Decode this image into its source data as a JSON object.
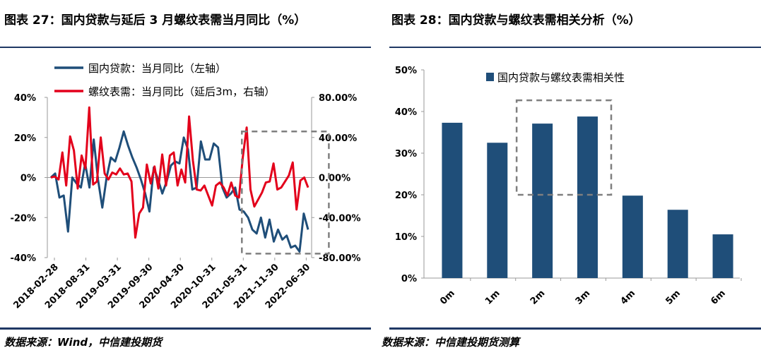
{
  "left": {
    "title": "图表 27：国内贷款与延后 3 月螺纹表需当月同比（%）",
    "source": "数据来源：Wind，中信建投期货",
    "chart_data": {
      "type": "line",
      "legend_position": "top-left",
      "grid": false,
      "x_ticks": [
        "2018-02-28",
        "2018-08-31",
        "2019-03-31",
        "2019-09-30",
        "2020-04-30",
        "2020-10-31",
        "2021-05-31",
        "2021-11-30",
        "2022-06-30"
      ],
      "y_left": {
        "ticks": [
          "40%",
          "20%",
          "0%",
          "-20%",
          "-40%"
        ],
        "range": [
          -40,
          40
        ]
      },
      "y_right": {
        "ticks": [
          "80.00%",
          "40.00%",
          "0.00%",
          "-40.00%",
          "-80.00%"
        ],
        "range": [
          -80,
          80
        ]
      },
      "series": [
        {
          "name": "国内贷款：当月同比（左轴）",
          "color": "#1f4e79",
          "axis": "left",
          "values": [
            0,
            2,
            -10,
            -9,
            -27,
            0,
            -3,
            -5,
            7,
            -5,
            19,
            -1,
            -15,
            0,
            10,
            8,
            15,
            23,
            16,
            10,
            5,
            -1,
            -8,
            -17,
            5,
            -1,
            -8,
            -2,
            6,
            8,
            7,
            20,
            14,
            -6,
            -5,
            18,
            9,
            9,
            17,
            15,
            -5,
            -10,
            -8,
            -5,
            -16,
            -17,
            -20,
            -26,
            -28,
            -20,
            -30,
            -21,
            -32,
            -26,
            -31,
            -29,
            -35,
            -34,
            -37,
            -18,
            -26
          ]
        },
        {
          "name": "螺纹表需：当月同比（延后3m，右轴）",
          "color": "#e3001b",
          "axis": "right",
          "values": [
            0,
            1,
            -2,
            25,
            -8,
            41,
            27,
            -11,
            22,
            9,
            70,
            -7,
            -4,
            40,
            4,
            -2,
            5,
            3,
            9,
            3,
            4,
            -4,
            -60,
            -36,
            -30,
            13,
            -6,
            11,
            -11,
            23,
            -8,
            22,
            25,
            -8,
            8,
            -5,
            61,
            17,
            -12,
            -13,
            -8,
            -18,
            -28,
            -8,
            -5,
            -10,
            -18,
            -5,
            -18,
            -20,
            20,
            50,
            -12,
            -29,
            -22,
            -15,
            -5,
            -4,
            14,
            -12,
            -10,
            -4,
            2,
            15,
            -32,
            -3,
            0,
            -10
          ]
        }
      ],
      "highlight_box": {
        "x_from": "2021-05-31",
        "x_to": "2022-06-30",
        "left_axis_range": [
          -38,
          23
        ]
      }
    }
  },
  "right": {
    "title": "图表 28：国内贷款与螺纹表需相关分析（%）",
    "source": "数据来源：中信建投期货测算",
    "chart_data": {
      "type": "bar",
      "legend_position": "top-left",
      "grid": false,
      "categories": [
        "0m",
        "1m",
        "2m",
        "3m",
        "4m",
        "5m",
        "6m"
      ],
      "series": [
        {
          "name": "国内贷款与螺纹表需相关性",
          "color": "#1f4e79",
          "values": [
            37.3,
            32.5,
            37.1,
            38.8,
            19.8,
            16.4,
            10.5
          ]
        }
      ],
      "y_ticks": [
        "50%",
        "40%",
        "30%",
        "20%",
        "10%",
        "0%"
      ],
      "ylim": [
        0,
        50
      ],
      "highlight_box": {
        "categories": [
          "2m",
          "3m"
        ],
        "y_range": [
          20,
          42.7
        ]
      }
    }
  }
}
